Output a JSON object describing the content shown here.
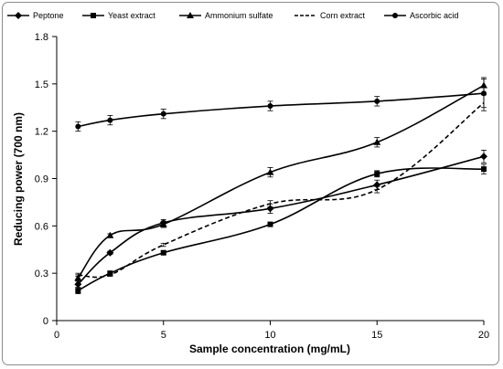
{
  "chart_data": {
    "type": "line",
    "title": "",
    "xlabel": "Sample concentration (mg/mL)",
    "ylabel": "Reducing power (700 nm)",
    "xlim": [
      0,
      20
    ],
    "ylim": [
      0,
      1.8
    ],
    "xticks": [
      0,
      5,
      10,
      15,
      20
    ],
    "yticks": [
      0,
      0.3,
      0.6,
      0.9,
      1.2,
      1.5,
      1.8
    ],
    "ytick_labels": [
      "0",
      "0.3",
      "0.6",
      "0.9",
      "1.2",
      "1.5",
      "1.8"
    ],
    "grid": false,
    "legend_position": "top",
    "line_color": "#000000",
    "x": [
      1,
      2.5,
      5,
      10,
      15,
      20
    ],
    "series": [
      {
        "name": "Peptone",
        "marker": "diamond",
        "dash": "solid",
        "values": [
          0.23,
          0.43,
          0.62,
          0.71,
          0.86,
          1.04
        ],
        "errors": [
          0.02,
          0.01,
          0.02,
          0.03,
          0.03,
          0.04
        ]
      },
      {
        "name": "Yeast extract",
        "marker": "square",
        "dash": "solid",
        "values": [
          0.19,
          0.3,
          0.43,
          0.61,
          0.93,
          0.96
        ],
        "errors": [
          0.02,
          0.01,
          0.01,
          0.01,
          0.02,
          0.03
        ]
      },
      {
        "name": "Ammonium sulfate",
        "marker": "triangle",
        "dash": "solid",
        "values": [
          0.27,
          0.54,
          0.61,
          0.94,
          1.13,
          1.49
        ],
        "errors": [
          0.02,
          0.01,
          0.02,
          0.03,
          0.03,
          0.05
        ]
      },
      {
        "name": "Corn extract",
        "marker": "none",
        "dash": "dashed",
        "values": [
          0.29,
          0.29,
          0.48,
          0.74,
          0.83,
          1.38
        ],
        "errors": [
          0.01,
          0.01,
          0.01,
          0.02,
          0.02,
          0.05
        ]
      },
      {
        "name": "Ascorbic acid",
        "marker": "circle",
        "dash": "solid",
        "values": [
          1.23,
          1.27,
          1.31,
          1.36,
          1.39,
          1.44
        ],
        "errors": [
          0.03,
          0.03,
          0.03,
          0.03,
          0.03,
          0.09
        ]
      }
    ]
  }
}
